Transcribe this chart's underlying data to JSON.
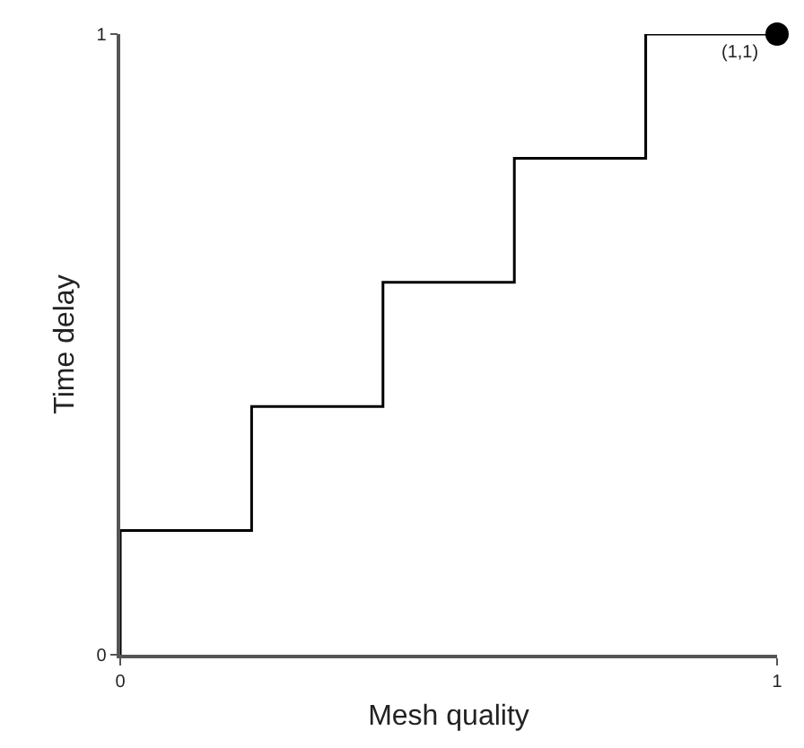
{
  "chart_data": {
    "type": "step",
    "xlabel": "Mesh quality",
    "ylabel": "Time delay",
    "xlim": [
      0,
      1
    ],
    "ylim": [
      0,
      1
    ],
    "xticks": [
      0,
      1
    ],
    "yticks": [
      0,
      1
    ],
    "series": [
      {
        "color": "#000000",
        "x": [
          0,
          0,
          0.2,
          0.4,
          0.6,
          0.8,
          1
        ],
        "values": [
          0,
          0.2,
          0.4,
          0.6,
          0.8,
          1,
          1
        ]
      },
      {
        "type": "scatter",
        "color": "#000000",
        "x": [
          1
        ],
        "values": [
          1
        ],
        "marker": "circle"
      }
    ],
    "annotations": [
      {
        "text": "(1,1)",
        "x": 1,
        "y": 1
      }
    ]
  }
}
